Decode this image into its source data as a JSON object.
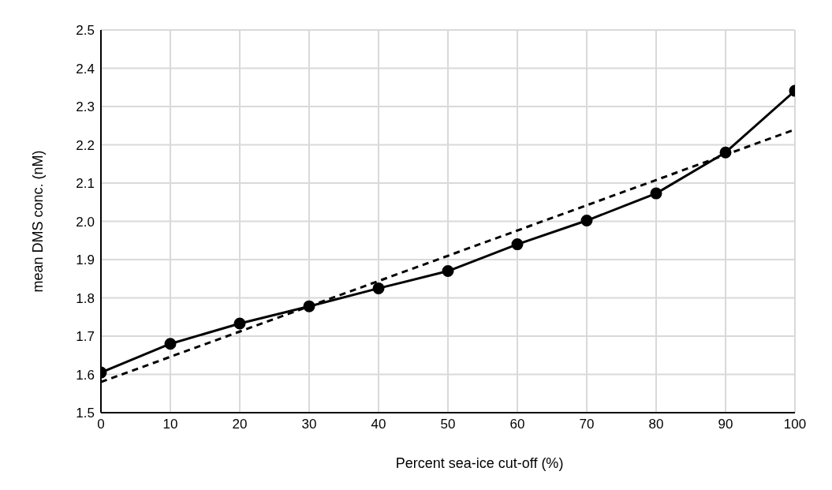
{
  "chart_data": {
    "type": "line",
    "xlabel": "Percent sea-ice cut-off (%)",
    "ylabel": "mean DMS conc. (nM)",
    "x": [
      0,
      10,
      20,
      30,
      40,
      50,
      60,
      70,
      80,
      90,
      100
    ],
    "series": [
      {
        "color": "#000000",
        "values": [
          1.605,
          1.68,
          1.733,
          1.778,
          1.825,
          1.87,
          1.94,
          2.002,
          2.073,
          2.18,
          2.341
        ],
        "marker": "circle",
        "line_style": "solid"
      },
      {
        "type": "line",
        "color": "#000000",
        "x": [
          0,
          100
        ],
        "values": [
          1.58,
          2.24
        ],
        "marker": "none",
        "line_style": "dashed"
      }
    ],
    "xlim": [
      0,
      100
    ],
    "xticks": [
      0,
      10,
      20,
      30,
      40,
      50,
      60,
      70,
      80,
      90,
      100
    ],
    "ylim": [
      1.5,
      2.5
    ],
    "yticks": [
      1.5,
      1.6,
      1.7,
      1.8,
      1.9,
      {
        "value": 2,
        "label": "2.0"
      },
      2.1,
      2.2,
      2.3,
      2.4,
      2.5
    ],
    "grid": true
  }
}
